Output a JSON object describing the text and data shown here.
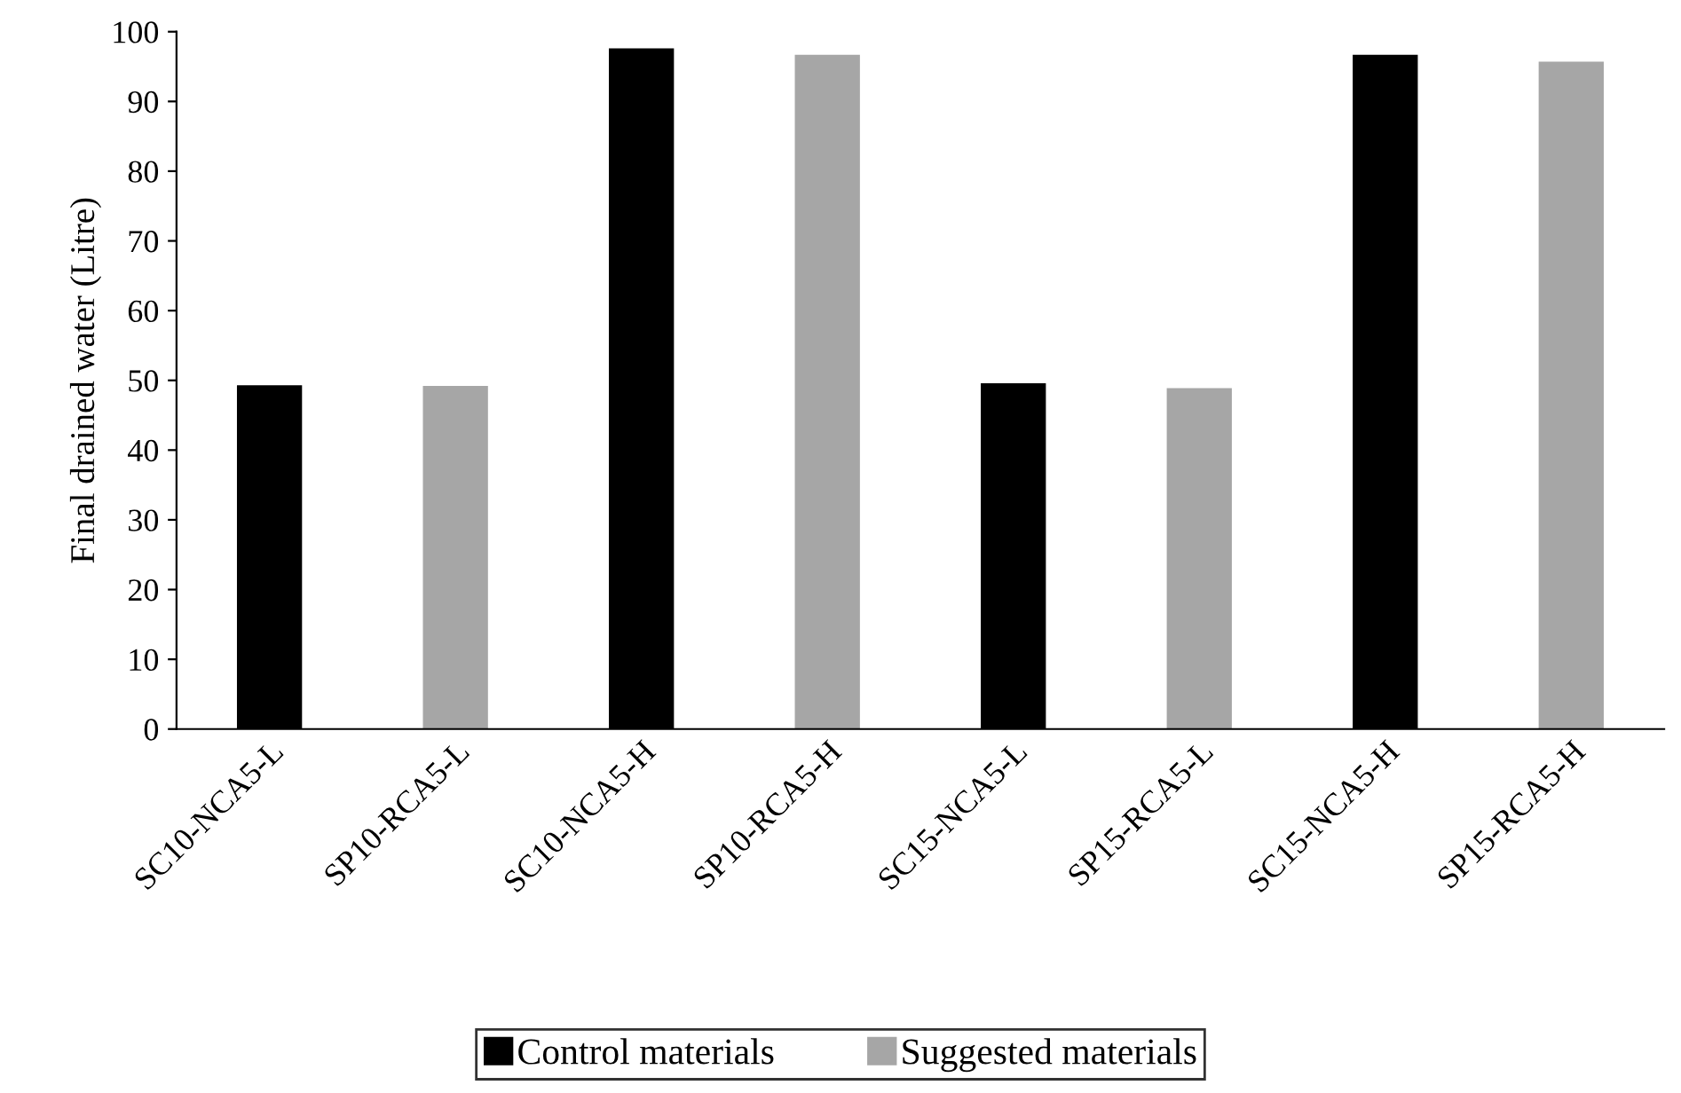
{
  "chart_data": {
    "type": "bar",
    "ylabel": "Final drained water (Litre)",
    "categories": [
      "SC10-NCA5-L",
      "SP10-RCA5-L",
      "SC10-NCA5-H",
      "SP10-RCA5-H",
      "SC15-NCA5-L",
      "SP15-RCA5-L",
      "SC15-NCA5-H",
      "SP15-RCA5-H"
    ],
    "series": [
      {
        "name": "Control materials",
        "color": "#000000",
        "values": [
          49.3,
          null,
          97.6,
          null,
          49.6,
          null,
          96.7,
          null
        ]
      },
      {
        "name": "Suggested materials",
        "color": "#a6a6a6",
        "values": [
          null,
          49.2,
          null,
          96.7,
          null,
          48.9,
          null,
          95.7
        ]
      }
    ],
    "ylim": [
      0,
      100
    ],
    "yticks": [
      0,
      10,
      20,
      30,
      40,
      50,
      60,
      70,
      80,
      90,
      100
    ],
    "grid": false,
    "legend": "bottom"
  }
}
